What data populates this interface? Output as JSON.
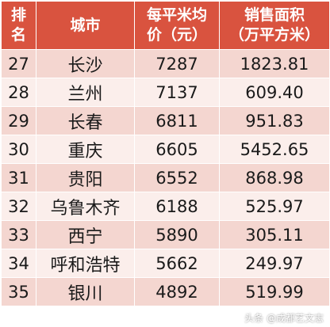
{
  "header": {
    "rank": [
      "排",
      "名"
    ],
    "city": "城市",
    "price": [
      "每平米均",
      "价（元）"
    ],
    "area": [
      "销售面积",
      "（万平方米）"
    ]
  },
  "rows": [
    {
      "rank": "27",
      "city": "长沙",
      "price": "7287",
      "area": "1823.81"
    },
    {
      "rank": "28",
      "city": "兰州",
      "price": "7137",
      "area": "609.40"
    },
    {
      "rank": "29",
      "city": "长春",
      "price": "6811",
      "area": "951.83"
    },
    {
      "rank": "30",
      "city": "重庆",
      "price": "6605",
      "area": "5452.65"
    },
    {
      "rank": "31",
      "city": "贵阳",
      "price": "6552",
      "area": "868.98"
    },
    {
      "rank": "32",
      "city": "乌鲁木齐",
      "price": "6188",
      "area": "525.97"
    },
    {
      "rank": "33",
      "city": "西宁",
      "price": "5890",
      "area": "305.11"
    },
    {
      "rank": "34",
      "city": "呼和浩特",
      "price": "5662",
      "area": "249.97"
    },
    {
      "rank": "35",
      "city": "银川",
      "price": "4892",
      "area": "519.99"
    }
  ],
  "watermark": "头条 @成都艺文志",
  "colors": {
    "header_bg": "#d9533f",
    "row_odd": "#f4d6d0",
    "row_even": "#fbeeeb"
  }
}
